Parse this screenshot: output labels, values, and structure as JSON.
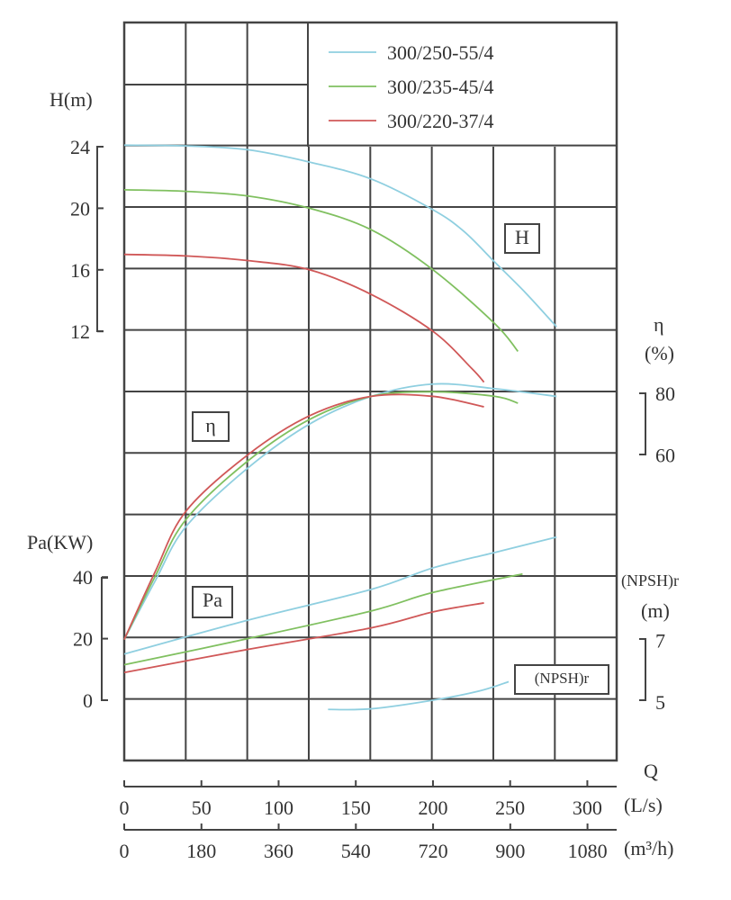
{
  "chart_data": {
    "type": "line",
    "title": "",
    "legend": {
      "placement": "top-right",
      "entries": [
        "300/250-55/4",
        "300/235-45/4",
        "300/220-37/4"
      ]
    },
    "colors": {
      "300/250-55/4": "#8fcfe0",
      "300/235-45/4": "#80c060",
      "300/220-37/4": "#d05858"
    },
    "grid": true,
    "x_axes": [
      {
        "label": "(L/s)",
        "ticks": [
          0,
          50,
          100,
          150,
          200,
          250,
          300
        ],
        "range": [
          0,
          319
        ]
      },
      {
        "label": "(m³/h)",
        "ticks": [
          0,
          180,
          360,
          540,
          720,
          900,
          1080
        ],
        "range": [
          0,
          1148
        ]
      }
    ],
    "x_title": "Q",
    "y_axes": {
      "H": {
        "label": "H(m)",
        "ticks": [
          24,
          20,
          16,
          12
        ]
      },
      "eta": {
        "label": "η",
        "unit": "(%)",
        "ticks": [
          80,
          60
        ]
      },
      "Pa": {
        "label": "Pa(KW)",
        "ticks": [
          40,
          20,
          0
        ]
      },
      "NPSH": {
        "label": "(NPSH)r",
        "unit": "(m)",
        "ticks": [
          7,
          5
        ]
      }
    },
    "curve_labels": {
      "H": "H",
      "eta": "η",
      "Pa": "Pa",
      "NPSH": "(NPSH)r"
    },
    "series": [
      {
        "name": "300/250-55/4",
        "H": [
          [
            0,
            24.1
          ],
          [
            40,
            24.05
          ],
          [
            80,
            23.8
          ],
          [
            120,
            23.0
          ],
          [
            160,
            21.9
          ],
          [
            200,
            19.9
          ],
          [
            220,
            18.5
          ],
          [
            240,
            16.5
          ],
          [
            260,
            14.5
          ],
          [
            280,
            12.3
          ]
        ],
        "eta": [
          [
            0,
            0
          ],
          [
            20,
            19
          ],
          [
            40,
            36.7
          ],
          [
            80,
            55.7
          ],
          [
            120,
            70
          ],
          [
            160,
            79
          ],
          [
            200,
            83
          ],
          [
            240,
            81.5
          ],
          [
            280,
            79
          ]
        ],
        "Pa": [
          [
            0,
            15
          ],
          [
            80,
            26
          ],
          [
            160,
            36
          ],
          [
            200,
            43
          ],
          [
            240,
            48
          ],
          [
            280,
            53
          ]
        ],
        "NPSH": [
          [
            132,
            4.7
          ],
          [
            160,
            4.72
          ],
          [
            200,
            5.0
          ],
          [
            230,
            5.3
          ],
          [
            249,
            5.6
          ]
        ]
      },
      {
        "name": "300/235-45/4",
        "H": [
          [
            0,
            21.2
          ],
          [
            40,
            21.1
          ],
          [
            80,
            20.8
          ],
          [
            120,
            20.0
          ],
          [
            160,
            18.6
          ],
          [
            200,
            16.0
          ],
          [
            240,
            12.5
          ],
          [
            255,
            10.7
          ]
        ],
        "eta": [
          [
            0,
            0
          ],
          [
            20,
            20.5
          ],
          [
            40,
            39
          ],
          [
            80,
            58
          ],
          [
            120,
            71.5
          ],
          [
            160,
            79
          ],
          [
            200,
            80.5
          ],
          [
            240,
            79
          ],
          [
            255,
            76.8
          ]
        ],
        "Pa": [
          [
            0,
            11.5
          ],
          [
            80,
            20
          ],
          [
            160,
            29
          ],
          [
            200,
            35
          ],
          [
            258,
            41
          ]
        ],
        "NPSH": []
      },
      {
        "name": "300/220-37/4",
        "H": [
          [
            0,
            17.0
          ],
          [
            40,
            16.9
          ],
          [
            80,
            16.6
          ],
          [
            120,
            16.0
          ],
          [
            160,
            14.4
          ],
          [
            200,
            12.0
          ],
          [
            225,
            9.6
          ],
          [
            233,
            8.7
          ]
        ],
        "eta": [
          [
            0,
            0
          ],
          [
            20,
            22
          ],
          [
            40,
            41.7
          ],
          [
            80,
            60
          ],
          [
            120,
            72.7
          ],
          [
            160,
            79
          ],
          [
            200,
            79
          ],
          [
            233,
            75.6
          ]
        ],
        "Pa": [
          [
            0,
            9
          ],
          [
            80,
            16.5
          ],
          [
            160,
            23.5
          ],
          [
            200,
            28.7
          ],
          [
            233,
            31.6
          ]
        ],
        "NPSH": []
      }
    ]
  }
}
